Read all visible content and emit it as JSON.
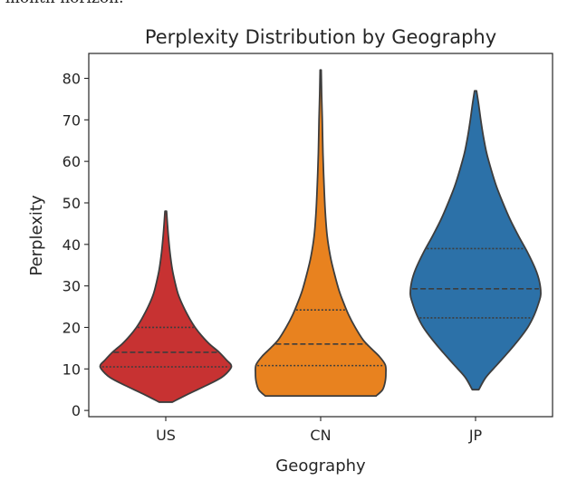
{
  "top_text": "-month horizon.",
  "chart_data": {
    "type": "violin",
    "title": "Perplexity Distribution by Geography",
    "xlabel": "Geography",
    "ylabel": "Perplexity",
    "categories": [
      "US",
      "CN",
      "JP"
    ],
    "ylim": [
      -1.5,
      86
    ],
    "yticks": [
      0,
      10,
      20,
      30,
      40,
      50,
      60,
      70,
      80
    ],
    "grid": false,
    "series": [
      {
        "category": "US",
        "color": "#c73232",
        "min": 2,
        "max": 48,
        "quartiles": [
          10.5,
          14,
          20
        ],
        "profile": [
          [
            2,
            0.1
          ],
          [
            4,
            0.35
          ],
          [
            6,
            0.62
          ],
          [
            8,
            0.86
          ],
          [
            10,
            0.99
          ],
          [
            11,
            1.0
          ],
          [
            12,
            0.94
          ],
          [
            14,
            0.82
          ],
          [
            16,
            0.67
          ],
          [
            18,
            0.55
          ],
          [
            20,
            0.45
          ],
          [
            22,
            0.37
          ],
          [
            25,
            0.27
          ],
          [
            28,
            0.19
          ],
          [
            31,
            0.14
          ],
          [
            34,
            0.1
          ],
          [
            38,
            0.065
          ],
          [
            42,
            0.04
          ],
          [
            45,
            0.025
          ],
          [
            48,
            0.012
          ]
        ]
      },
      {
        "category": "CN",
        "color": "#e8821f",
        "min": 3.5,
        "max": 82,
        "quartiles": [
          10.8,
          16,
          24.2
        ],
        "profile": [
          [
            3.5,
            0.85
          ],
          [
            5,
            0.95
          ],
          [
            7,
            0.99
          ],
          [
            9,
            1.0
          ],
          [
            11,
            0.99
          ],
          [
            13,
            0.9
          ],
          [
            15,
            0.77
          ],
          [
            17,
            0.65
          ],
          [
            20,
            0.53
          ],
          [
            23,
            0.43
          ],
          [
            26,
            0.35
          ],
          [
            29,
            0.28
          ],
          [
            33,
            0.21
          ],
          [
            37,
            0.15
          ],
          [
            42,
            0.1
          ],
          [
            48,
            0.07
          ],
          [
            55,
            0.05
          ],
          [
            62,
            0.035
          ],
          [
            70,
            0.025
          ],
          [
            76,
            0.015
          ],
          [
            82,
            0.008
          ]
        ]
      },
      {
        "category": "JP",
        "color": "#2c71a8",
        "min": 5,
        "max": 77,
        "quartiles": [
          22.3,
          29.3,
          39
        ],
        "profile": [
          [
            5,
            0.05
          ],
          [
            8,
            0.16
          ],
          [
            11,
            0.33
          ],
          [
            14,
            0.5
          ],
          [
            17,
            0.66
          ],
          [
            20,
            0.8
          ],
          [
            23,
            0.9
          ],
          [
            26,
            0.97
          ],
          [
            28,
            1.0
          ],
          [
            31,
            0.98
          ],
          [
            34,
            0.92
          ],
          [
            38,
            0.8
          ],
          [
            42,
            0.66
          ],
          [
            46,
            0.53
          ],
          [
            50,
            0.42
          ],
          [
            54,
            0.32
          ],
          [
            58,
            0.24
          ],
          [
            62,
            0.17
          ],
          [
            66,
            0.12
          ],
          [
            70,
            0.08
          ],
          [
            74,
            0.045
          ],
          [
            77,
            0.015
          ]
        ]
      }
    ]
  }
}
